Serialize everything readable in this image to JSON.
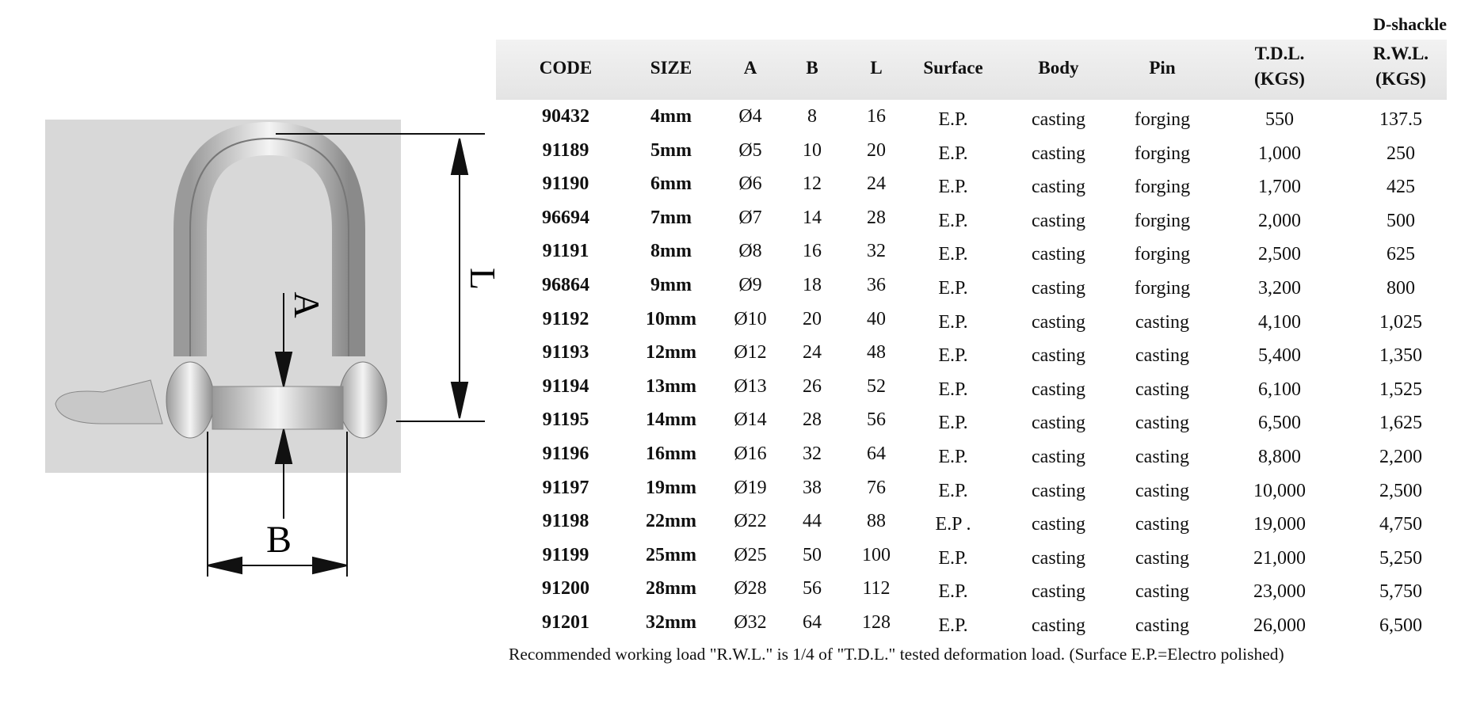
{
  "title": "D-shackle",
  "headers": [
    {
      "l1": "CODE",
      "l2": ""
    },
    {
      "l1": "SIZE",
      "l2": ""
    },
    {
      "l1": "A",
      "l2": ""
    },
    {
      "l1": "B",
      "l2": ""
    },
    {
      "l1": "L",
      "l2": ""
    },
    {
      "l1": "Surface",
      "l2": ""
    },
    {
      "l1": "Body",
      "l2": ""
    },
    {
      "l1": "Pin",
      "l2": ""
    },
    {
      "l1": "T.D.L.",
      "l2": "(KGS)"
    },
    {
      "l1": "R.W.L.",
      "l2": "(KGS)"
    }
  ],
  "rows": [
    [
      "90432",
      "4mm",
      "Ø4",
      "8",
      "16",
      "E.P.",
      "casting",
      "forging",
      "550",
      "137.5"
    ],
    [
      "91189",
      "5mm",
      "Ø5",
      "10",
      "20",
      "E.P.",
      "casting",
      "forging",
      "1,000",
      "250"
    ],
    [
      "91190",
      "6mm",
      "Ø6",
      "12",
      "24",
      "E.P.",
      "casting",
      "forging",
      "1,700",
      "425"
    ],
    [
      "96694",
      "7mm",
      "Ø7",
      "14",
      "28",
      "E.P.",
      "casting",
      "forging",
      "2,000",
      "500"
    ],
    [
      "91191",
      "8mm",
      "Ø8",
      "16",
      "32",
      "E.P.",
      "casting",
      "forging",
      "2,500",
      "625"
    ],
    [
      "96864",
      "9mm",
      "Ø9",
      "18",
      "36",
      "E.P.",
      "casting",
      "forging",
      "3,200",
      "800"
    ],
    [
      "91192",
      "10mm",
      "Ø10",
      "20",
      "40",
      "E.P.",
      "casting",
      "casting",
      "4,100",
      "1,025"
    ],
    [
      "91193",
      "12mm",
      "Ø12",
      "24",
      "48",
      "E.P.",
      "casting",
      "casting",
      "5,400",
      "1,350"
    ],
    [
      "91194",
      "13mm",
      "Ø13",
      "26",
      "52",
      "E.P.",
      "casting",
      "casting",
      "6,100",
      "1,525"
    ],
    [
      "91195",
      "14mm",
      "Ø14",
      "28",
      "56",
      "E.P.",
      "casting",
      "casting",
      "6,500",
      "1,625"
    ],
    [
      "91196",
      "16mm",
      "Ø16",
      "32",
      "64",
      "E.P.",
      "casting",
      "casting",
      "8,800",
      "2,200"
    ],
    [
      "91197",
      "19mm",
      "Ø19",
      "38",
      "76",
      "E.P.",
      "casting",
      "casting",
      "10,000",
      "2,500"
    ],
    [
      "91198",
      "22mm",
      "Ø22",
      "44",
      "88",
      "E.P .",
      "casting",
      "casting",
      "19,000",
      "4,750"
    ],
    [
      "91199",
      "25mm",
      "Ø25",
      "50",
      "100",
      "E.P.",
      "casting",
      "casting",
      "21,000",
      "5,250"
    ],
    [
      "91200",
      "28mm",
      "Ø28",
      "56",
      "112",
      "E.P.",
      "casting",
      "casting",
      "23,000",
      "5,750"
    ],
    [
      "91201",
      "32mm",
      "Ø32",
      "64",
      "128",
      "E.P.",
      "casting",
      "casting",
      "26,000",
      "6,500"
    ]
  ],
  "footnote": "Recommended working load \"R.W.L.\" is 1/4 of \"T.D.L.\" tested deformation load. (Surface E.P.=Electro polished)",
  "diagram": {
    "label_a": "A",
    "label_b": "B",
    "label_l": "L"
  }
}
